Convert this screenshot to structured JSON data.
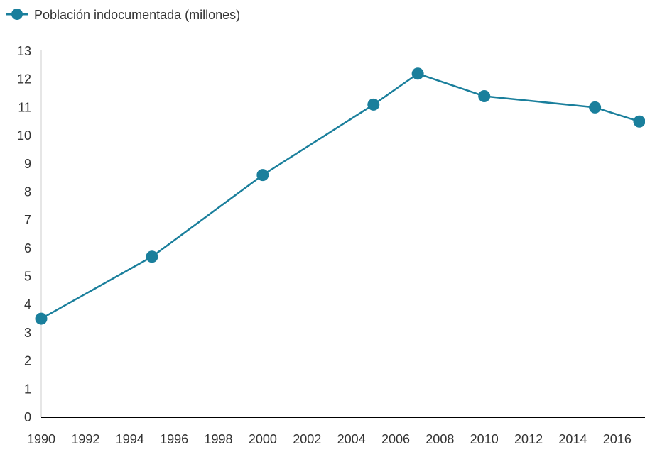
{
  "colors": {
    "series": "#1a7f9c",
    "axis": "#000000",
    "axis_left": "#cccccc",
    "text": "#333333"
  },
  "chart_data": {
    "type": "line",
    "title": "",
    "xlabel": "",
    "ylabel": "",
    "grid": false,
    "legend": "top-left",
    "xlim": [
      1990,
      2017
    ],
    "ylim": [
      0,
      13
    ],
    "x_ticks": [
      "1990",
      "1992",
      "1994",
      "1996",
      "1998",
      "2000",
      "2002",
      "2004",
      "2006",
      "2008",
      "2010",
      "2012",
      "2014",
      "2016"
    ],
    "y_ticks": [
      "0",
      "1",
      "2",
      "3",
      "4",
      "5",
      "6",
      "7",
      "8",
      "9",
      "10",
      "11",
      "12",
      "13"
    ],
    "series": [
      {
        "name": "Población indocumentada (millones)",
        "x": [
          1990,
          1995,
          2000,
          2005,
          2007,
          2010,
          2015,
          2017
        ],
        "y": [
          3.5,
          5.7,
          8.6,
          11.1,
          12.2,
          11.4,
          11.0,
          10.5
        ]
      }
    ]
  }
}
